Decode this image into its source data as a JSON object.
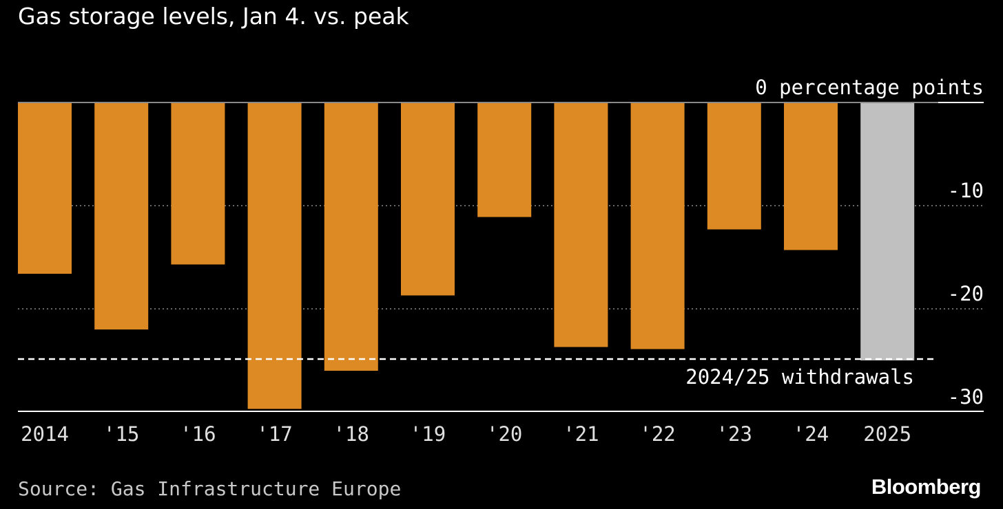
{
  "title": "Gas storage levels, Jan 4. vs. peak",
  "source": "Source: Gas Infrastructure Europe",
  "brand": "Bloomberg",
  "colors": {
    "background": "#000000",
    "bar": "#de8a24",
    "highlight": "#c0c0c0",
    "text": "#ffffff",
    "grid": "#8a8a8a"
  },
  "chart_data": {
    "type": "bar",
    "categories": [
      "2014",
      "'15",
      "'16",
      "'17",
      "'18",
      "'19",
      "'20",
      "'21",
      "'22",
      "'23",
      "'24",
      "2025"
    ],
    "values": [
      -16.6,
      -22.0,
      -15.7,
      -29.7,
      -26.0,
      -18.7,
      -11.1,
      -23.7,
      -23.9,
      -12.3,
      -14.3,
      -25.0
    ],
    "highlight_category": "2025",
    "ylim": [
      -30,
      0
    ],
    "yticks": [
      0,
      -10,
      -20,
      -30
    ],
    "ytick_labels": [
      "0 percentage points",
      "-10",
      "-20",
      "-30"
    ],
    "grid": true,
    "reference_line": {
      "value": -25.0,
      "label": "2024/25 withdrawals"
    }
  }
}
